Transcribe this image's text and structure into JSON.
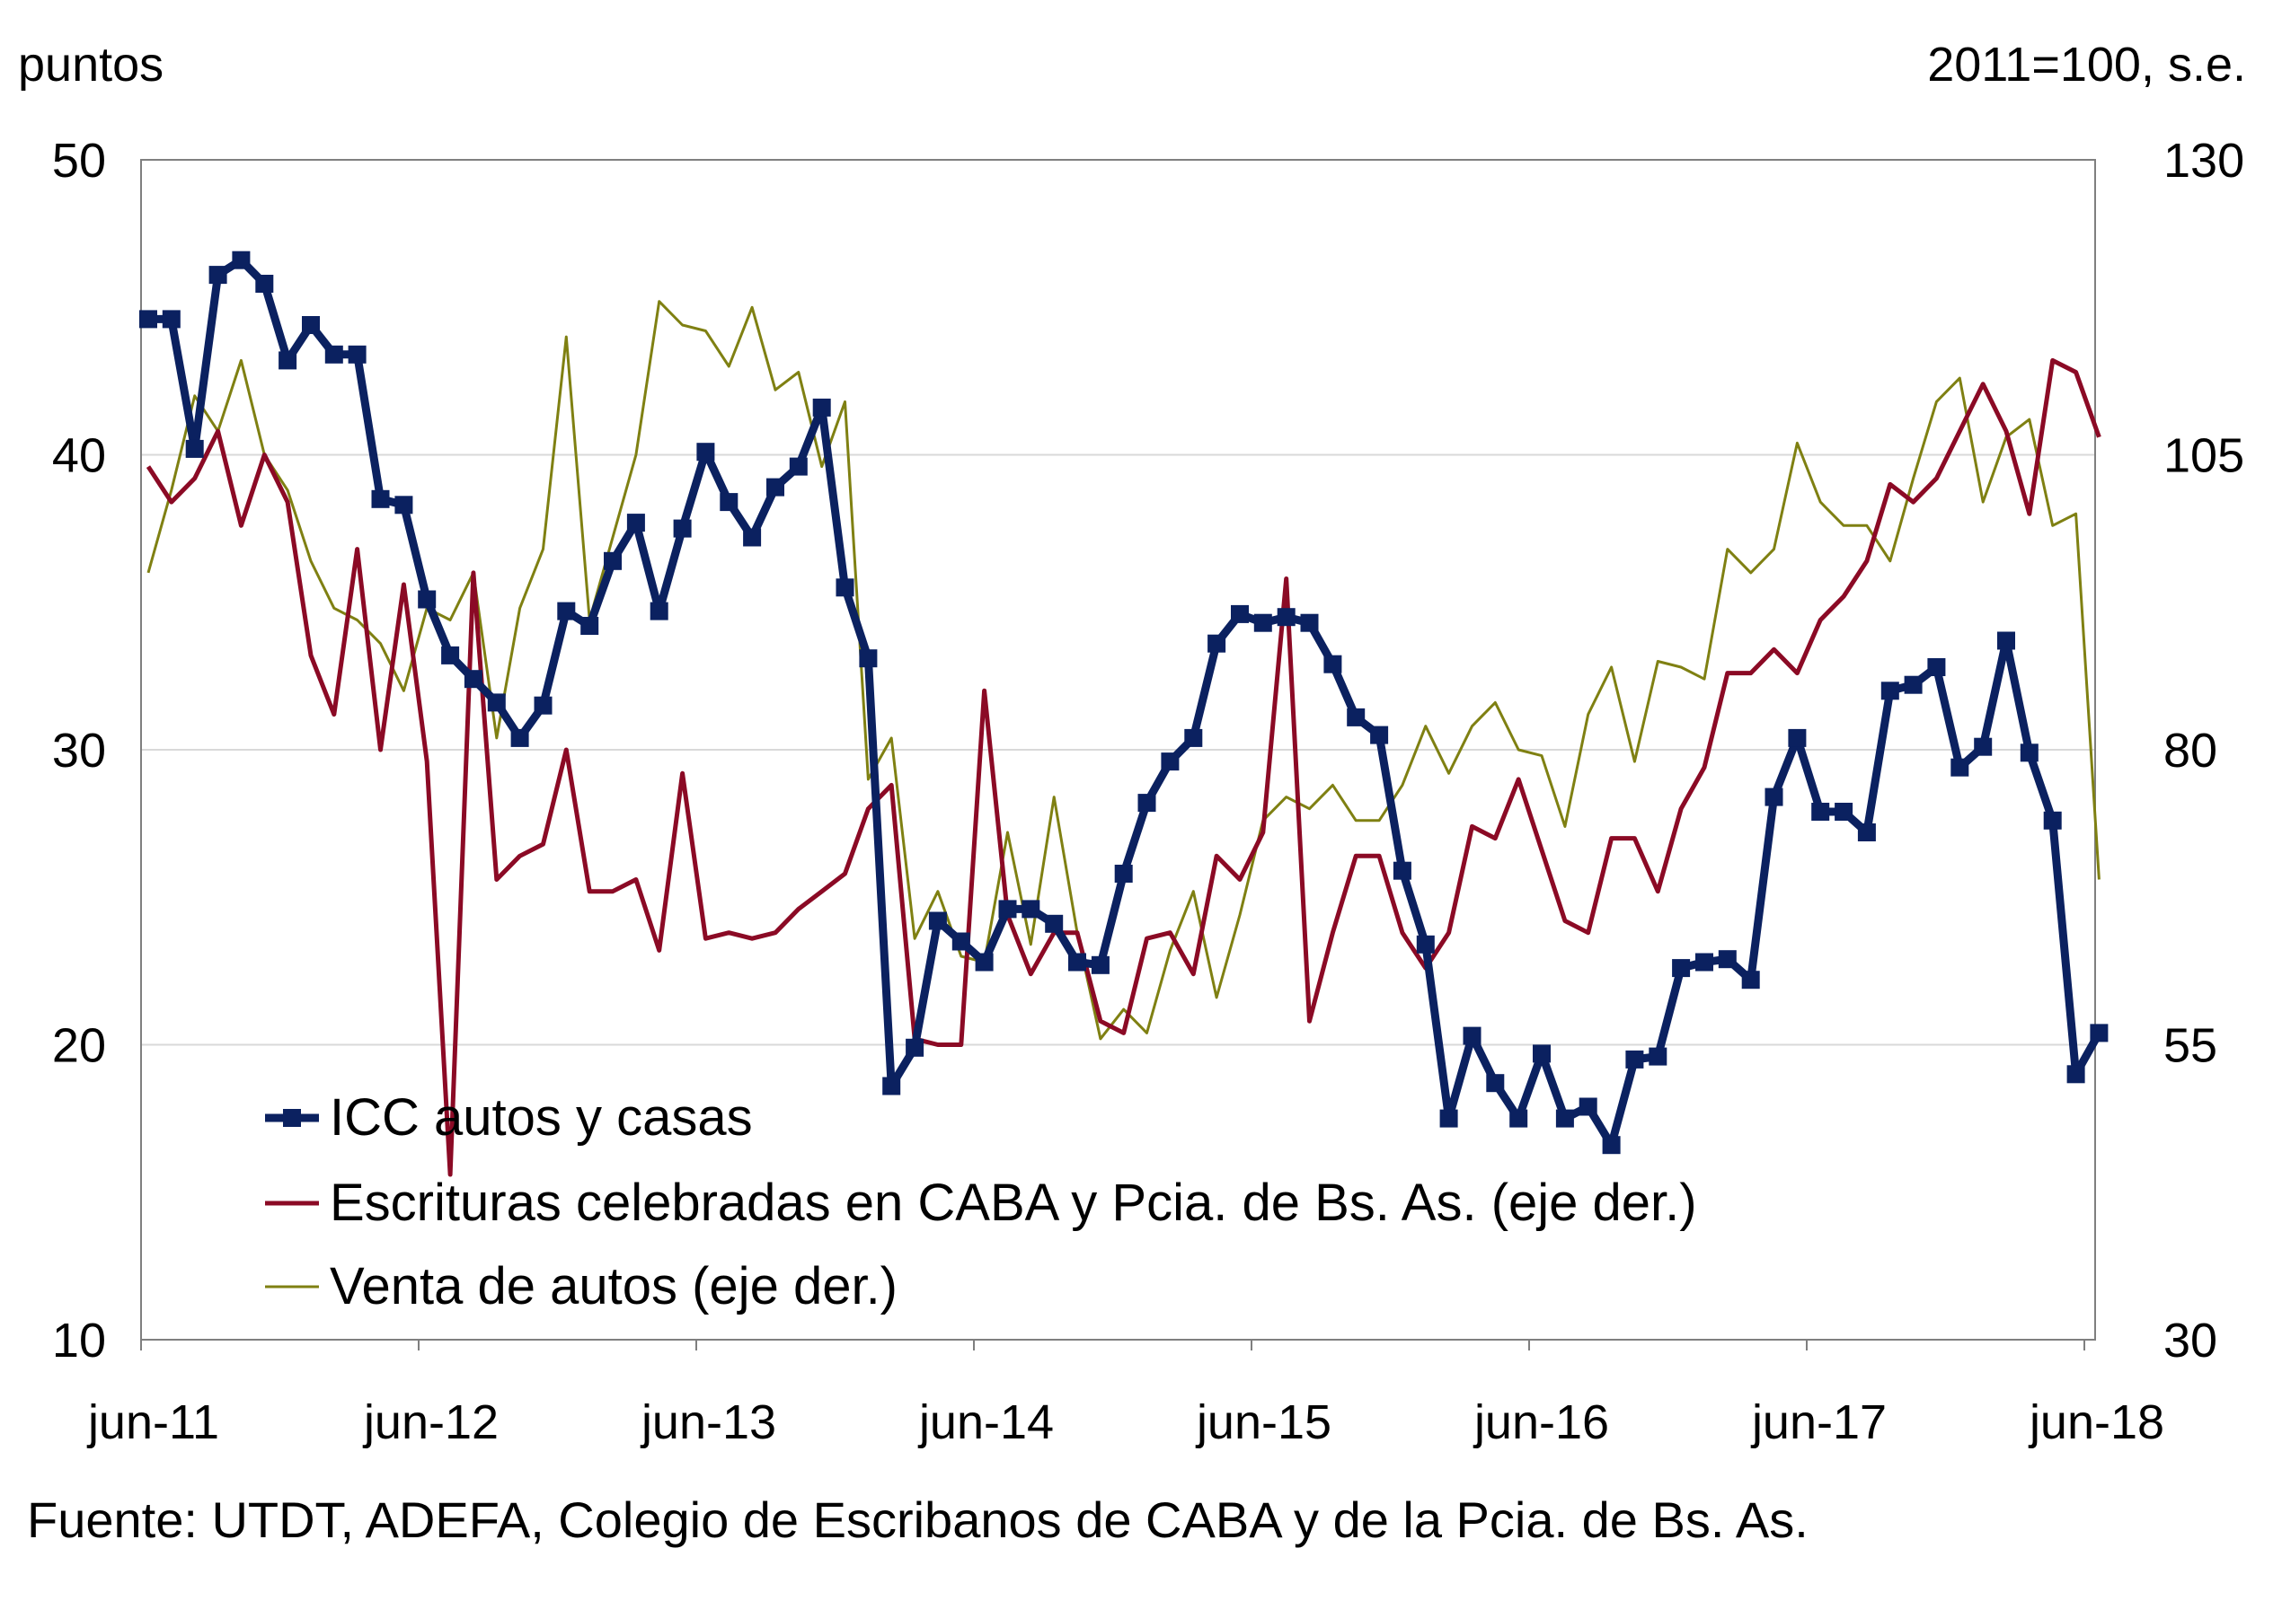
{
  "chart_data": {
    "type": "line",
    "title": "",
    "left_axis_unit": "puntos",
    "right_axis_unit": "2011=100, s.e.",
    "left_ylim": [
      10,
      50
    ],
    "left_ticks": [
      "10",
      "20",
      "30",
      "40",
      "50"
    ],
    "right_ylim": [
      30,
      130
    ],
    "right_ticks": [
      "30",
      "55",
      "80",
      "105",
      "130"
    ],
    "x_tick_labels": [
      "jun-11",
      "jun-12",
      "jun-13",
      "jun-14",
      "jun-15",
      "jun-16",
      "jun-17",
      "jun-18"
    ],
    "grid": true,
    "legend_position": "bottom-left",
    "series": [
      {
        "name": "ICC autos y casas",
        "axis": "left",
        "color": "#0b2160",
        "markers": true,
        "values": [
          44.6,
          44.6,
          40.2,
          46.1,
          46.6,
          45.8,
          43.2,
          44.4,
          43.4,
          43.4,
          38.5,
          38.3,
          35.1,
          33.2,
          32.4,
          31.6,
          30.4,
          31.5,
          34.7,
          34.2,
          36.4,
          37.7,
          34.7,
          37.5,
          40.1,
          38.4,
          37.2,
          38.9,
          39.6,
          41.6,
          35.5,
          33.1,
          18.6,
          19.9,
          24.2,
          23.5,
          22.8,
          24.6,
          24.6,
          24.1,
          22.8,
          22.7,
          25.8,
          28.2,
          29.6,
          30.4,
          33.6,
          34.6,
          34.3,
          34.5,
          34.3,
          32.9,
          31.1,
          30.5,
          25.9,
          23.4,
          17.5,
          20.3,
          18.7,
          17.5,
          19.7,
          17.5,
          17.9,
          16.6,
          19.5,
          19.6,
          22.6,
          22.8,
          22.9,
          22.2,
          28.4,
          30.4,
          27.9,
          27.9,
          27.2,
          32.0,
          32.2,
          32.8,
          29.4,
          30.1,
          33.7,
          29.9,
          27.6,
          19.0,
          20.4
        ]
      },
      {
        "name": "Escrituras celebradas en CABA y Pcia. de Bs. As. (eje der.)",
        "axis": "right",
        "color": "#8b0a25",
        "markers": false,
        "values": [
          104,
          101,
          103,
          107,
          99,
          105,
          101,
          88,
          83,
          97,
          80,
          94,
          79,
          44,
          95,
          69,
          71,
          72,
          80,
          68,
          68,
          69,
          63,
          78,
          64,
          64.5,
          64,
          64.5,
          66.5,
          68,
          69.5,
          75,
          77,
          55.5,
          55,
          55,
          85,
          66,
          61,
          64.5,
          64.5,
          57,
          56,
          64,
          64.5,
          61,
          71,
          69,
          73,
          94.5,
          57,
          64.5,
          71,
          71,
          64.5,
          61.5,
          64.5,
          73.5,
          72.5,
          77.5,
          71.5,
          65.5,
          64.5,
          72.5,
          72.5,
          68,
          75,
          78.5,
          86.5,
          86.5,
          88.5,
          86.5,
          91,
          93,
          96,
          102.5,
          101,
          103,
          107,
          111,
          107,
          100,
          113,
          112,
          106.5
        ]
      },
      {
        "name": "Venta de autos (eje der.)",
        "axis": "right",
        "color": "#7f8012",
        "markers": false,
        "values": [
          95,
          102,
          110,
          107,
          113,
          105,
          102,
          96,
          92,
          91,
          89,
          85,
          92,
          91,
          95,
          81,
          92,
          97,
          115,
          91,
          98,
          105,
          118,
          116,
          115.5,
          112.5,
          117.5,
          110.5,
          112,
          104,
          109.5,
          77.5,
          81,
          64,
          68,
          62.5,
          62,
          73,
          63.5,
          76,
          64.5,
          55.5,
          58,
          56,
          63,
          68,
          59,
          66,
          74,
          76,
          75,
          77,
          74,
          74,
          77,
          82,
          78,
          82,
          84,
          80,
          79.5,
          73.5,
          83,
          87,
          79,
          87.5,
          87,
          86,
          97,
          95,
          97,
          106,
          101,
          99,
          99,
          96,
          103,
          109.5,
          111.5,
          101,
          106.5,
          108,
          99,
          100,
          69
        ]
      }
    ]
  },
  "source": "Fuente: UTDT, ADEFA, Colegio de Escribanos de CABA y de la Pcia. de Bs. As."
}
